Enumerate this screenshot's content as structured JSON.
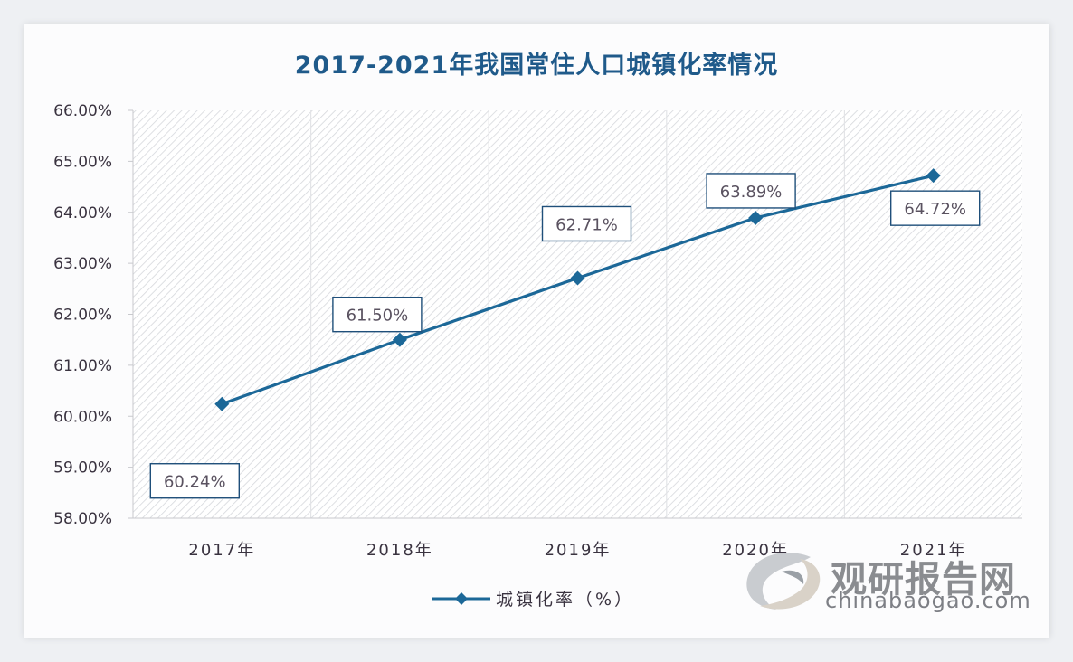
{
  "title": "2017-2021年我国常住人口城镇化率情况",
  "legend": {
    "label": "城镇化率（%）"
  },
  "watermark": {
    "name_cn": "观研报告网",
    "domain": "chinabaogao.com"
  },
  "colors": {
    "series": "#1c6898",
    "title": "#1f5a8a",
    "label_border": "#1f4f7a"
  },
  "y_ticks": [
    "66.00%",
    "65.00%",
    "64.00%",
    "63.00%",
    "62.00%",
    "61.00%",
    "60.00%",
    "59.00%",
    "58.00%"
  ],
  "x_ticks": [
    "2017年",
    "2018年",
    "2019年",
    "2020年",
    "2021年"
  ],
  "data_labels": [
    "60.24%",
    "61.50%",
    "62.71%",
    "63.89%",
    "64.72%"
  ],
  "chart_data": {
    "type": "line",
    "title": "2017-2021年我国常住人口城镇化率情况",
    "categories": [
      "2017年",
      "2018年",
      "2019年",
      "2020年",
      "2021年"
    ],
    "series": [
      {
        "name": "城镇化率（%）",
        "values": [
          60.24,
          61.5,
          62.71,
          63.89,
          64.72
        ],
        "marker": "diamond"
      }
    ],
    "xlabel": "",
    "ylabel": "",
    "ylim": [
      58,
      66
    ],
    "y_tick_step": 1,
    "y_tick_format": "0.00%",
    "grid": "vertical category separators; hatched plot background",
    "legend_position": "bottom",
    "data_labels": true
  }
}
